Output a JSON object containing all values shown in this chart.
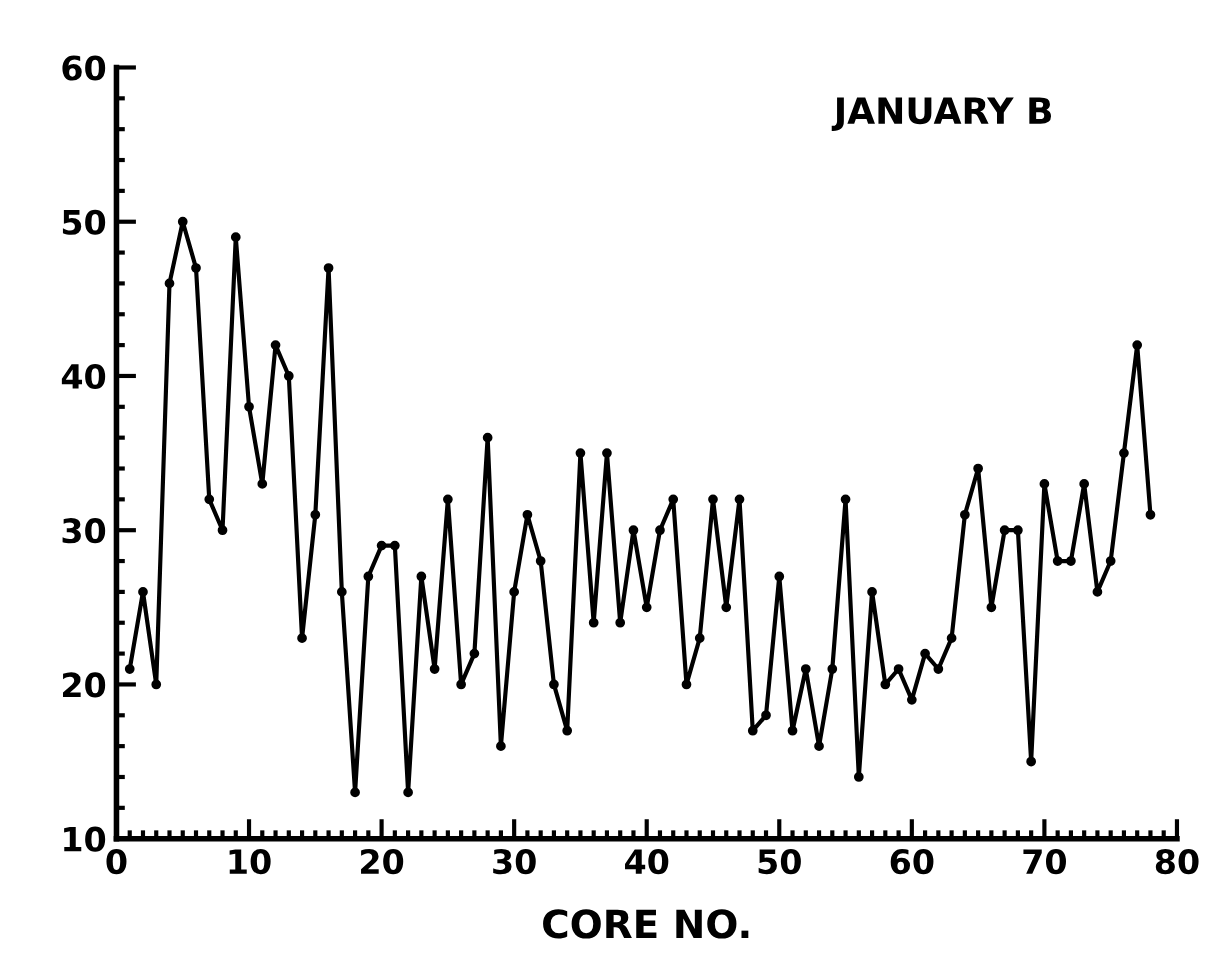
{
  "chart_data": {
    "type": "line",
    "title": "JANUARY B",
    "xlabel": "CORE NO.",
    "x": [
      1,
      2,
      3,
      4,
      5,
      6,
      7,
      8,
      9,
      10,
      11,
      12,
      13,
      14,
      15,
      16,
      17,
      18,
      19,
      20,
      21,
      22,
      23,
      24,
      25,
      26,
      27,
      28,
      29,
      30,
      31,
      32,
      33,
      34,
      35,
      36,
      37,
      38,
      39,
      40,
      41,
      42,
      43,
      44,
      45,
      46,
      47,
      48,
      49,
      50,
      51,
      52,
      53,
      54,
      55,
      56,
      57,
      58,
      59,
      60,
      61,
      62,
      63,
      64,
      65,
      66,
      67,
      68,
      69,
      70,
      71,
      72,
      73,
      74,
      75,
      76,
      77,
      78
    ],
    "values": [
      21,
      26,
      20,
      46,
      50,
      47,
      32,
      30,
      49,
      38,
      33,
      42,
      40,
      23,
      31,
      47,
      26,
      13,
      27,
      29,
      29,
      13,
      27,
      21,
      32,
      20,
      22,
      36,
      16,
      26,
      31,
      28,
      20,
      17,
      35,
      24,
      35,
      24,
      30,
      25,
      30,
      32,
      20,
      23,
      32,
      25,
      32,
      17,
      18,
      27,
      17,
      21,
      16,
      21,
      32,
      14,
      26,
      20,
      21,
      19,
      22,
      21,
      23,
      31,
      34,
      25,
      30,
      30,
      15,
      33,
      28,
      28,
      33,
      26,
      28,
      35,
      42,
      31
    ],
    "color": "#000000",
    "marker": "circle",
    "line_style": "solid",
    "grid": false,
    "legend": false,
    "xlim": [
      0,
      80
    ],
    "xticks": [
      0,
      10,
      20,
      30,
      40,
      50,
      60,
      70,
      80
    ],
    "ylim": [
      10,
      60
    ],
    "yticks": [
      10,
      20,
      30,
      40,
      50,
      60
    ]
  }
}
